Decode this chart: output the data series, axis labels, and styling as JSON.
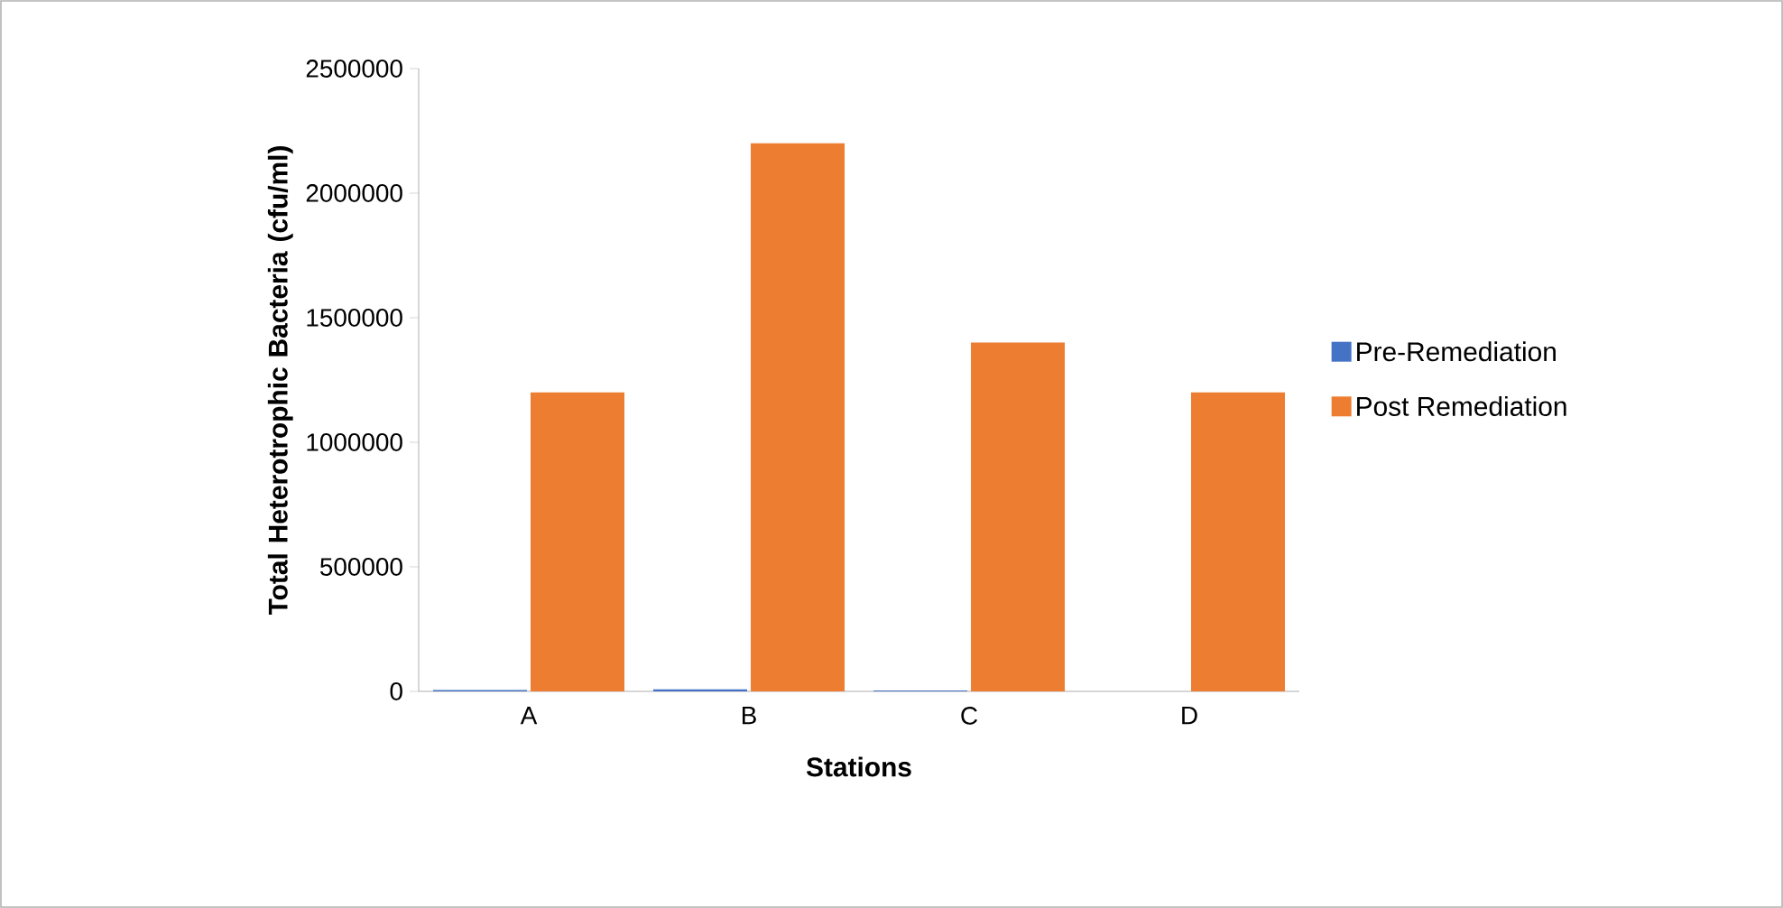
{
  "chart_data": {
    "type": "bar",
    "xlabel": "Stations",
    "ylabel": "Total Heterotrophic Bacteria (cfu/ml)",
    "categories": [
      "A",
      "B",
      "C",
      "D"
    ],
    "series": [
      {
        "name": "Pre-Remediation",
        "color": "#4472c4",
        "values": [
          5000,
          8000,
          4000,
          null
        ]
      },
      {
        "name": "Post Remediation",
        "color": "#ed7d31",
        "values": [
          1200000,
          2200000,
          1400000,
          1200000
        ]
      }
    ],
    "ylim": [
      0,
      2500000
    ],
    "yticks": [
      0,
      500000,
      1000000,
      1500000,
      2000000,
      2500000
    ],
    "grid": false,
    "legend": "right"
  }
}
